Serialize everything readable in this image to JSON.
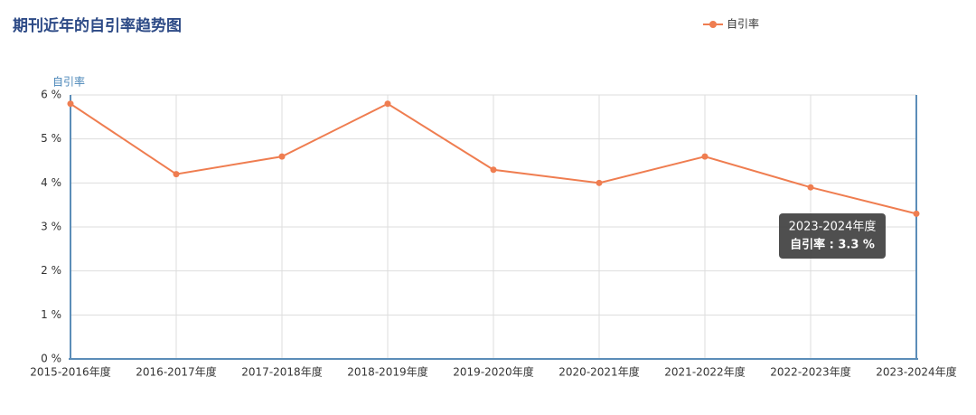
{
  "chart_data": {
    "type": "line",
    "title": "期刊近年的自引率趋势图",
    "y_axis_label": "自引率",
    "categories": [
      "2015-2016年度",
      "2016-2017年度",
      "2017-2018年度",
      "2018-2019年度",
      "2019-2020年度",
      "2020-2021年度",
      "2021-2022年度",
      "2022-2023年度",
      "2023-2024年度"
    ],
    "series": [
      {
        "name": "自引率",
        "color": "#ef7d50",
        "values": [
          5.8,
          4.2,
          4.6,
          5.8,
          4.3,
          4.0,
          4.6,
          3.9,
          3.3
        ]
      }
    ],
    "ylim": [
      0,
      6
    ],
    "yticks": [
      {
        "value": 0,
        "label": "0 %"
      },
      {
        "value": 1,
        "label": "1 %"
      },
      {
        "value": 2,
        "label": "2 %"
      },
      {
        "value": 3,
        "label": "3 %"
      },
      {
        "value": 4,
        "label": "4 %"
      },
      {
        "value": 5,
        "label": "5 %"
      },
      {
        "value": 6,
        "label": "6 %"
      }
    ],
    "grid": true,
    "legend": "top",
    "tooltip": {
      "title": "2023-2024年度",
      "text": "自引率 : 3.3 %"
    }
  }
}
